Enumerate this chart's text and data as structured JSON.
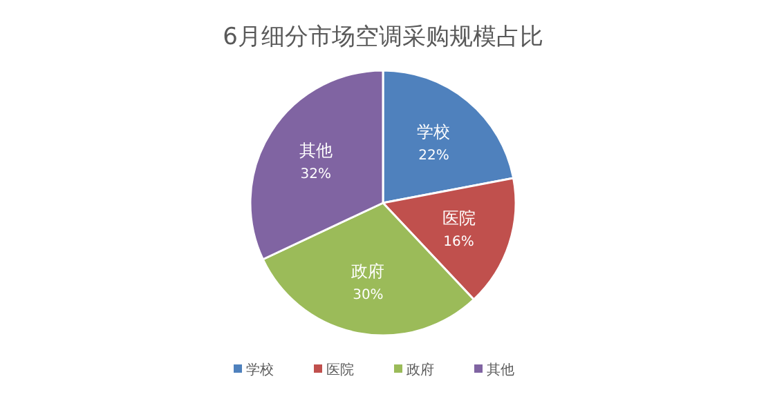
{
  "chart_data": {
    "type": "pie",
    "title": "6月细分市场空调采购规模占比",
    "categories": [
      "学校",
      "医院",
      "政府",
      "其他"
    ],
    "values": [
      22,
      16,
      30,
      32
    ],
    "colors": [
      "#4f81bd",
      "#c0504d",
      "#9bbb59",
      "#8064a2"
    ],
    "value_labels": [
      "22%",
      "16%",
      "30%",
      "32%"
    ],
    "legend": "bottom"
  }
}
